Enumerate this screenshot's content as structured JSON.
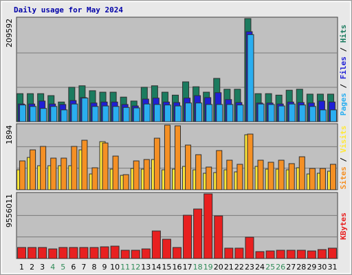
{
  "chart_data": [
    {
      "type": "bar",
      "title": "Daily usage for May 2024",
      "legend_separator": " / ",
      "series": [
        {
          "name": "Pages",
          "color": "#2aaef0",
          "values": [
            34000,
            31000,
            27000,
            31000,
            24000,
            36000,
            48000,
            31000,
            32000,
            31000,
            29000,
            28000,
            36000,
            35000,
            34000,
            32000,
            38000,
            38000,
            35000,
            35000,
            35000,
            34000,
            177000,
            36000,
            35000,
            32000,
            36000,
            34000,
            31000,
            24000,
            24000
          ]
        },
        {
          "name": "Files",
          "color": "#1f1fd6",
          "values": [
            36000,
            36000,
            42000,
            36000,
            35000,
            43000,
            49000,
            38000,
            40000,
            40000,
            35000,
            32000,
            46000,
            48000,
            40000,
            39000,
            48000,
            53000,
            49000,
            59000,
            45000,
            39000,
            183000,
            38000,
            38000,
            36000,
            40000,
            39000,
            38000,
            42000,
            40000
          ]
        },
        {
          "name": "Hits",
          "color": "#1b7b5f",
          "values": [
            57000,
            57000,
            57000,
            53000,
            40000,
            70000,
            73000,
            63000,
            60000,
            60000,
            50000,
            42000,
            70000,
            73000,
            60000,
            54000,
            81000,
            71000,
            60000,
            88000,
            66000,
            66000,
            209592,
            57000,
            57000,
            54000,
            64000,
            66000,
            56000,
            56000,
            56000
          ]
        }
      ],
      "ylim": [
        0,
        209592
      ],
      "yticks": [
        209592
      ]
    },
    {
      "type": "bar",
      "legend_separator": " / ",
      "series": [
        {
          "name": "Sites",
          "color": "#f59024",
          "values": [
            846,
            1169,
            1270,
            927,
            927,
            1270,
            1451,
            645,
            1370,
            987,
            443,
            846,
            887,
            1511,
            1894,
            1874,
            1310,
            1028,
            665,
            1149,
            866,
            746,
            1632,
            866,
            806,
            866,
            766,
            967,
            625,
            625,
            746
          ]
        },
        {
          "name": "Visits",
          "color": "#ffe838",
          "values": [
            584,
            947,
            705,
            705,
            705,
            705,
            1169,
            463,
            1410,
            604,
            423,
            625,
            604,
            887,
            584,
            604,
            685,
            584,
            484,
            504,
            584,
            524,
            1612,
            685,
            604,
            604,
            584,
            645,
            463,
            484,
            544
          ]
        }
      ],
      "ylim": [
        0,
        1894
      ],
      "yticks": [
        1894
      ]
    },
    {
      "type": "bar",
      "categories": [
        "1",
        "2",
        "3",
        "4",
        "5",
        "6",
        "7",
        "8",
        "9",
        "10",
        "11",
        "12",
        "13",
        "14",
        "15",
        "16",
        "17",
        "18",
        "19",
        "20",
        "21",
        "22",
        "23",
        "24",
        "25",
        "26",
        "27",
        "28",
        "29",
        "30",
        "31"
      ],
      "category_colors": [
        "#000000",
        "#000000",
        "#000000",
        "#2e8b57",
        "#2e8b57",
        "#000000",
        "#000000",
        "#000000",
        "#000000",
        "#000000",
        "#2e8b57",
        "#2e8b57",
        "#000000",
        "#000000",
        "#000000",
        "#000000",
        "#000000",
        "#2e8b57",
        "#2e8b57",
        "#000000",
        "#000000",
        "#000000",
        "#000000",
        "#000000",
        "#2e8b57",
        "#2e8b57",
        "#000000",
        "#000000",
        "#000000",
        "#000000",
        "#000000"
      ],
      "legend_separator": " / ",
      "series": [
        {
          "name": "KBytes",
          "color": "#e82020",
          "values": [
            1630000,
            1630000,
            1630000,
            1420000,
            1630000,
            1630000,
            1630000,
            1630000,
            1730000,
            1830000,
            1220000,
            1220000,
            1420000,
            4070000,
            2850000,
            1630000,
            6400000,
            7320000,
            9556011,
            6300000,
            1530000,
            1530000,
            3150000,
            1020000,
            1120000,
            1220000,
            1220000,
            1220000,
            1120000,
            1320000,
            1530000
          ]
        }
      ],
      "ylim": [
        0,
        9556011
      ],
      "yticks": [
        9556011
      ]
    }
  ]
}
